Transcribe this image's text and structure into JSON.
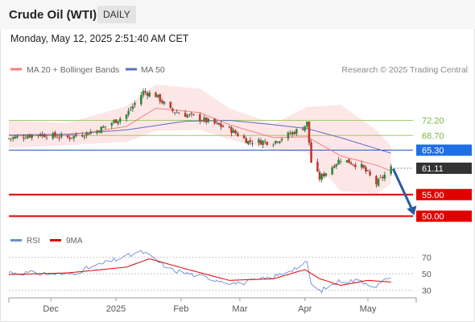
{
  "header": {
    "instrument": "Crude Oil (WTI)",
    "period": "DAILY",
    "datetime": "Monday, May 12, 2025 2:51:40 AM CET"
  },
  "legend": {
    "ma20_label": "MA 20 + Bollinger Bands",
    "ma50_label": "MA 50",
    "copyright": "Research © 2025 Trading Central",
    "rsi_label": "RSI",
    "ma9_label": "9MA"
  },
  "colors": {
    "ma20": "#f08080",
    "bollinger_fill": "#fde6e6",
    "ma50": "#5b6fc0",
    "candle_up": "#2e8b3a",
    "candle_down": "#c0392b",
    "support_line": "#e00000",
    "pivot_line": "#1f5fbf",
    "resistance_line": "#9ccc65",
    "last_price_box": "#333333",
    "arrow": "#2a5aa0",
    "rsi": "#6b8bd6",
    "rsi_ma9": "#e00000"
  },
  "chart_data": [
    {
      "type": "candlestick",
      "title": "Crude Oil (WTI)",
      "ylim": [
        46,
        82
      ],
      "x_tick_labels": [
        "Dec",
        "2025",
        "Feb",
        "Mar",
        "Apr",
        "May"
      ],
      "price_levels": [
        {
          "label": "72.20",
          "value": 72.2,
          "kind": "resistance"
        },
        {
          "label": "68.70",
          "value": 68.7,
          "kind": "resistance"
        },
        {
          "label": "65.30",
          "value": 65.3,
          "kind": "pivot"
        },
        {
          "label": "61.11",
          "value": 61.11,
          "kind": "last_price"
        },
        {
          "label": "55.00",
          "value": 55.0,
          "kind": "support"
        },
        {
          "label": "50.00",
          "value": 50.0,
          "kind": "support"
        }
      ],
      "close_path": [
        [
          "2024-11-11",
          68.0
        ],
        [
          "2024-11-25",
          69.0
        ],
        [
          "2024-12-09",
          68.2
        ],
        [
          "2024-12-23",
          69.8
        ],
        [
          "2025-01-06",
          73.5
        ],
        [
          "2025-01-14",
          78.8
        ],
        [
          "2025-01-20",
          78.0
        ],
        [
          "2025-01-27",
          74.5
        ],
        [
          "2025-02-10",
          72.6
        ],
        [
          "2025-02-24",
          70.2
        ],
        [
          "2025-03-05",
          67.3
        ],
        [
          "2025-03-17",
          67.2
        ],
        [
          "2025-03-31",
          70.5
        ],
        [
          "2025-04-02",
          71.6
        ],
        [
          "2025-04-04",
          62.5
        ],
        [
          "2025-04-08",
          58.8
        ],
        [
          "2025-04-18",
          63.3
        ],
        [
          "2025-04-28",
          61.5
        ],
        [
          "2025-05-05",
          57.5
        ],
        [
          "2025-05-12",
          61.11
        ]
      ],
      "ma20_path": [
        [
          "2024-11-11",
          68.6
        ],
        [
          "2024-12-09",
          68.7
        ],
        [
          "2025-01-06",
          70.8
        ],
        [
          "2025-01-20",
          75.0
        ],
        [
          "2025-02-10",
          74.0
        ],
        [
          "2025-02-24",
          71.2
        ],
        [
          "2025-03-17",
          68.2
        ],
        [
          "2025-04-02",
          68.4
        ],
        [
          "2025-04-18",
          64.0
        ],
        [
          "2025-05-05",
          61.8
        ],
        [
          "2025-05-12",
          60.5
        ]
      ],
      "ma50_path": [
        [
          "2024-11-11",
          68.8
        ],
        [
          "2024-12-09",
          69.0
        ],
        [
          "2025-01-06",
          70.0
        ],
        [
          "2025-02-03",
          72.0
        ],
        [
          "2025-02-24",
          72.2
        ],
        [
          "2025-03-17",
          71.2
        ],
        [
          "2025-04-02",
          70.3
        ],
        [
          "2025-04-18",
          68.2
        ],
        [
          "2025-05-12",
          64.6
        ]
      ],
      "bb_upper_path": [
        [
          "2024-11-11",
          72.2
        ],
        [
          "2024-12-09",
          71.6
        ],
        [
          "2025-01-06",
          75.5
        ],
        [
          "2025-01-20",
          80.5
        ],
        [
          "2025-02-10",
          79.5
        ],
        [
          "2025-02-24",
          75.0
        ],
        [
          "2025-03-17",
          71.4
        ],
        [
          "2025-04-02",
          75.3
        ],
        [
          "2025-04-18",
          75.8
        ],
        [
          "2025-05-05",
          70.0
        ],
        [
          "2025-05-12",
          66.2
        ]
      ],
      "bb_lower_path": [
        [
          "2024-11-11",
          65.8
        ],
        [
          "2024-12-09",
          66.5
        ],
        [
          "2025-01-06",
          67.2
        ],
        [
          "2025-01-20",
          69.8
        ],
        [
          "2025-02-10",
          70.0
        ],
        [
          "2025-02-24",
          67.8
        ],
        [
          "2025-03-17",
          65.2
        ],
        [
          "2025-04-02",
          64.8
        ],
        [
          "2025-04-18",
          55.8
        ],
        [
          "2025-05-05",
          55.2
        ],
        [
          "2025-05-12",
          57.5
        ]
      ],
      "forecast_arrow": {
        "from": [
          "2025-05-13",
          61.0
        ],
        "to": [
          "2025-05-23",
          50.2
        ]
      }
    },
    {
      "type": "line",
      "title": "RSI",
      "ylim": [
        22,
        82
      ],
      "y_tick_labels": [
        "70",
        "50",
        "30"
      ],
      "series": [
        {
          "name": "RSI",
          "points": [
            [
              "2024-11-11",
              52
            ],
            [
              "2024-12-09",
              49
            ],
            [
              "2024-12-23",
              60
            ],
            [
              "2025-01-10",
              74
            ],
            [
              "2025-01-14",
              76
            ],
            [
              "2025-01-27",
              55
            ],
            [
              "2025-02-10",
              47
            ],
            [
              "2025-02-28",
              38
            ],
            [
              "2025-03-17",
              46
            ],
            [
              "2025-04-01",
              62
            ],
            [
              "2025-04-02",
              63
            ],
            [
              "2025-04-04",
              37
            ],
            [
              "2025-04-08",
              29
            ],
            [
              "2025-04-18",
              42
            ],
            [
              "2025-04-28",
              41
            ],
            [
              "2025-05-05",
              35
            ],
            [
              "2025-05-12",
              47
            ]
          ]
        },
        {
          "name": "9MA",
          "points": [
            [
              "2024-11-11",
              49
            ],
            [
              "2024-12-09",
              51
            ],
            [
              "2025-01-06",
              58
            ],
            [
              "2025-01-17",
              68
            ],
            [
              "2025-02-03",
              56
            ],
            [
              "2025-02-24",
              42
            ],
            [
              "2025-03-17",
              44
            ],
            [
              "2025-04-01",
              55
            ],
            [
              "2025-04-08",
              44
            ],
            [
              "2025-04-18",
              36
            ],
            [
              "2025-05-01",
              42
            ],
            [
              "2025-05-12",
              40
            ]
          ]
        }
      ]
    }
  ]
}
